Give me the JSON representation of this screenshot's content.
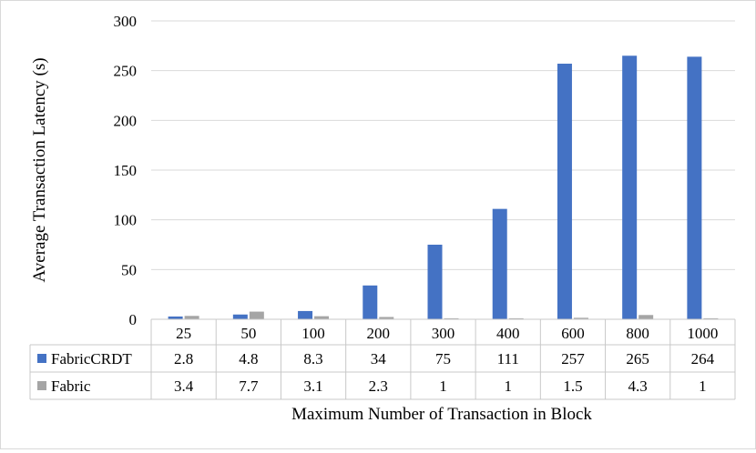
{
  "chart_data": {
    "type": "bar",
    "title": "",
    "xlabel": "Maximum Number of Transaction in Block",
    "ylabel": "Average Transaction Latency (s)",
    "ylim": [
      0,
      300
    ],
    "yticks": [
      0,
      50,
      100,
      150,
      200,
      250,
      300
    ],
    "grid": true,
    "categories": [
      "25",
      "50",
      "100",
      "200",
      "300",
      "400",
      "600",
      "800",
      "1000"
    ],
    "series": [
      {
        "name": "FabricCRDT",
        "color": "#4472c4",
        "values": [
          2.8,
          4.8,
          8.3,
          34,
          75,
          111,
          257,
          265,
          264
        ]
      },
      {
        "name": "Fabric",
        "color": "#a5a5a5",
        "values": [
          3.4,
          7.7,
          3.1,
          2.3,
          1,
          1,
          1.5,
          4.3,
          1
        ]
      }
    ],
    "data_table": {
      "rows": [
        {
          "series": "FabricCRDT",
          "cells": [
            "2.8",
            "4.8",
            "8.3",
            "34",
            "75",
            "111",
            "257",
            "265",
            "264"
          ]
        },
        {
          "series": "Fabric",
          "cells": [
            "3.4",
            "7.7",
            "3.1",
            "2.3",
            "1",
            "1",
            "1.5",
            "4.3",
            "1"
          ]
        }
      ]
    }
  }
}
